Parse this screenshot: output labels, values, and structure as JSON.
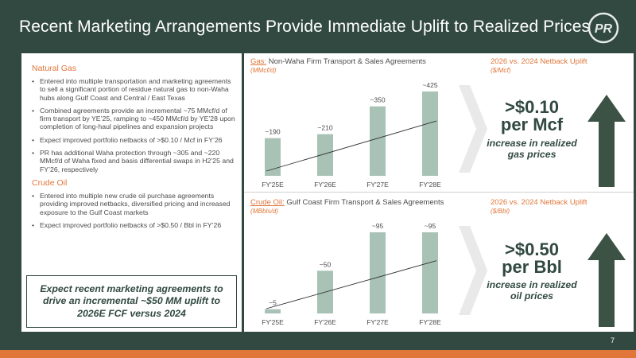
{
  "title": "Recent Marketing Arrangements Provide Immediate Uplift to Realized Prices",
  "logo_text": "PR",
  "left": {
    "sections": [
      {
        "heading": "Natural Gas",
        "bullets": [
          "Entered into multiple transportation and marketing agreements to sell a significant portion of residue natural gas to non-Waha hubs along Gulf Coast and Central / East Texas",
          "Combined agreements provide an incremental ~75 MMcf/d of firm transport by YE’25, ramping to ~450 MMcf/d by YE’28 upon completion of long-haul pipelines and expansion projects",
          "Expect improved portfolio netbacks of >$0.10 / Mcf in FY’26",
          "PR has additional Waha protection through ~305 and ~220 MMcf/d of Waha fixed and basis differential swaps in H2’25 and FY’26, respectively"
        ]
      },
      {
        "heading": "Crude Oil",
        "bullets": [
          "Entered into multiple new crude oil purchase agreements providing improved netbacks, diversified pricing and increased exposure to the Gulf Coast markets",
          "Expect improved portfolio netbacks of >$0.50 / Bbl in FY’26"
        ]
      }
    ],
    "callout": "Expect recent marketing agreements to drive an incremental ~$50 MM uplift to 2026E FCF versus 2024"
  },
  "gas": {
    "label": "Gas:",
    "title": " Non-Waha Firm Transport & Sales Agreements",
    "unit": "(MMcf/d)",
    "netback_title": "2026 vs. 2024 Netback Uplift",
    "netback_unit": "($/Mcf)",
    "big_value_line1": ">$0.10",
    "big_value_line2": "per Mcf",
    "big_sub": "increase in realized gas prices"
  },
  "oil": {
    "label": "Crude Oil:",
    "title": " Gulf Coast Firm Transport & Sales Agreements",
    "unit": "(MBbls/d)",
    "netback_title": "2026 vs. 2024 Netback Uplift",
    "netback_unit": "($/Bbl)",
    "big_value_line1": ">$0.50",
    "big_value_line2": "per Bbl",
    "big_sub": "increase in realized oil prices"
  },
  "chart_data": [
    {
      "type": "bar",
      "categories": [
        "FY'25E",
        "FY'26E",
        "FY'27E",
        "FY'28E"
      ],
      "values": [
        190,
        210,
        350,
        425
      ],
      "data_labels": [
        "~190",
        "~210",
        "~350",
        "~425"
      ],
      "ylabel": "(MMcf/d)",
      "ylim": [
        0,
        425
      ],
      "trend_line": true,
      "color": "#a9c2b6"
    },
    {
      "type": "bar",
      "categories": [
        "FY'25E",
        "FY'26E",
        "FY'27E",
        "FY'28E"
      ],
      "values": [
        5,
        50,
        95,
        95
      ],
      "data_labels": [
        "~5",
        "~50",
        "~95",
        "~95"
      ],
      "ylabel": "(MBbls/d)",
      "ylim": [
        0,
        95
      ],
      "trend_line": true,
      "color": "#a9c2b6"
    }
  ],
  "page_number": "7",
  "colors": {
    "background": "#314941",
    "accent": "#e1763a",
    "bar": "#a9c2b6",
    "arrow": "#3b5245"
  }
}
